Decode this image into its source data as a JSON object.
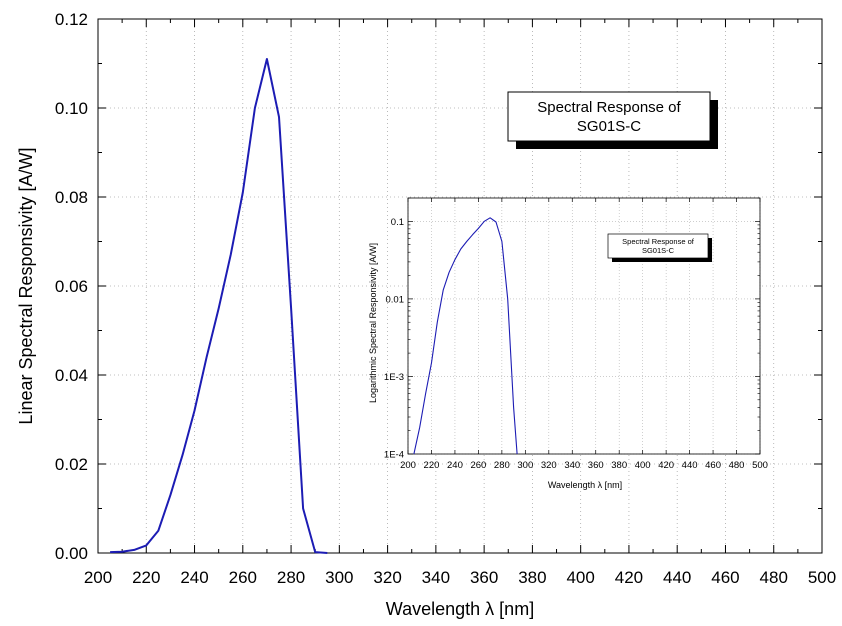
{
  "chart_data": [
    {
      "type": "line",
      "title": "Spectral Response of SG01S-C",
      "title_lines": [
        "Spectral Response of",
        "SG01S-C"
      ],
      "xlabel": "Wavelength λ [nm]",
      "ylabel": "Linear Spectral Responsivity [A/W]",
      "xlim": [
        200,
        500
      ],
      "ylim": [
        0,
        0.12
      ],
      "x_ticks": [
        "200",
        "220",
        "240",
        "260",
        "280",
        "300",
        "320",
        "340",
        "360",
        "380",
        "400",
        "420",
        "440",
        "460",
        "480",
        "500"
      ],
      "y_ticks": [
        "0.00",
        "0.02",
        "0.04",
        "0.06",
        "0.08",
        "0.10",
        "0.12"
      ],
      "grid": true,
      "series": [
        {
          "color": "#1c1cb4",
          "x": [
            205,
            210,
            215,
            220,
            225,
            230,
            235,
            240,
            245,
            250,
            255,
            260,
            265,
            270,
            275,
            280,
            285,
            290,
            295
          ],
          "y": [
            0.0002,
            0.0003,
            0.0007,
            0.0017,
            0.005,
            0.013,
            0.022,
            0.032,
            0.044,
            0.055,
            0.067,
            0.081,
            0.1,
            0.111,
            0.098,
            0.055,
            0.01,
            0.0002,
            0.0
          ]
        }
      ]
    },
    {
      "type": "line",
      "scale_y": "log",
      "title": "Spectral Response of SG01S-C",
      "title_lines": [
        "Spectral Response of",
        "SG01S-C"
      ],
      "xlabel": "Wavelength λ [nm]",
      "ylabel": "Logarithmic Spectral Responsivity [A/W]",
      "xlim": [
        200,
        500
      ],
      "ylim": [
        0.0001,
        0.2
      ],
      "x_ticks": [
        "200",
        "220",
        "240",
        "260",
        "280",
        "300",
        "320",
        "340",
        "360",
        "380",
        "400",
        "420",
        "440",
        "460",
        "480",
        "500"
      ],
      "y_ticks": [
        {
          "value": 0.1,
          "label": "0.1"
        },
        {
          "value": 0.01,
          "label": "0.01"
        },
        {
          "value": 0.001,
          "label": "1E-3"
        },
        {
          "value": 0.0001,
          "label": "1E-4"
        }
      ],
      "grid": true,
      "series": [
        {
          "color": "#1c1cb4",
          "x": [
            205,
            210,
            215,
            220,
            225,
            230,
            235,
            240,
            245,
            250,
            255,
            260,
            265,
            270,
            275,
            280,
            285,
            290,
            293
          ],
          "y": [
            0.0001,
            0.00022,
            0.0006,
            0.0015,
            0.005,
            0.013,
            0.022,
            0.032,
            0.044,
            0.055,
            0.067,
            0.081,
            0.1,
            0.111,
            0.098,
            0.055,
            0.01,
            0.0004,
            0.0001
          ]
        }
      ]
    }
  ]
}
